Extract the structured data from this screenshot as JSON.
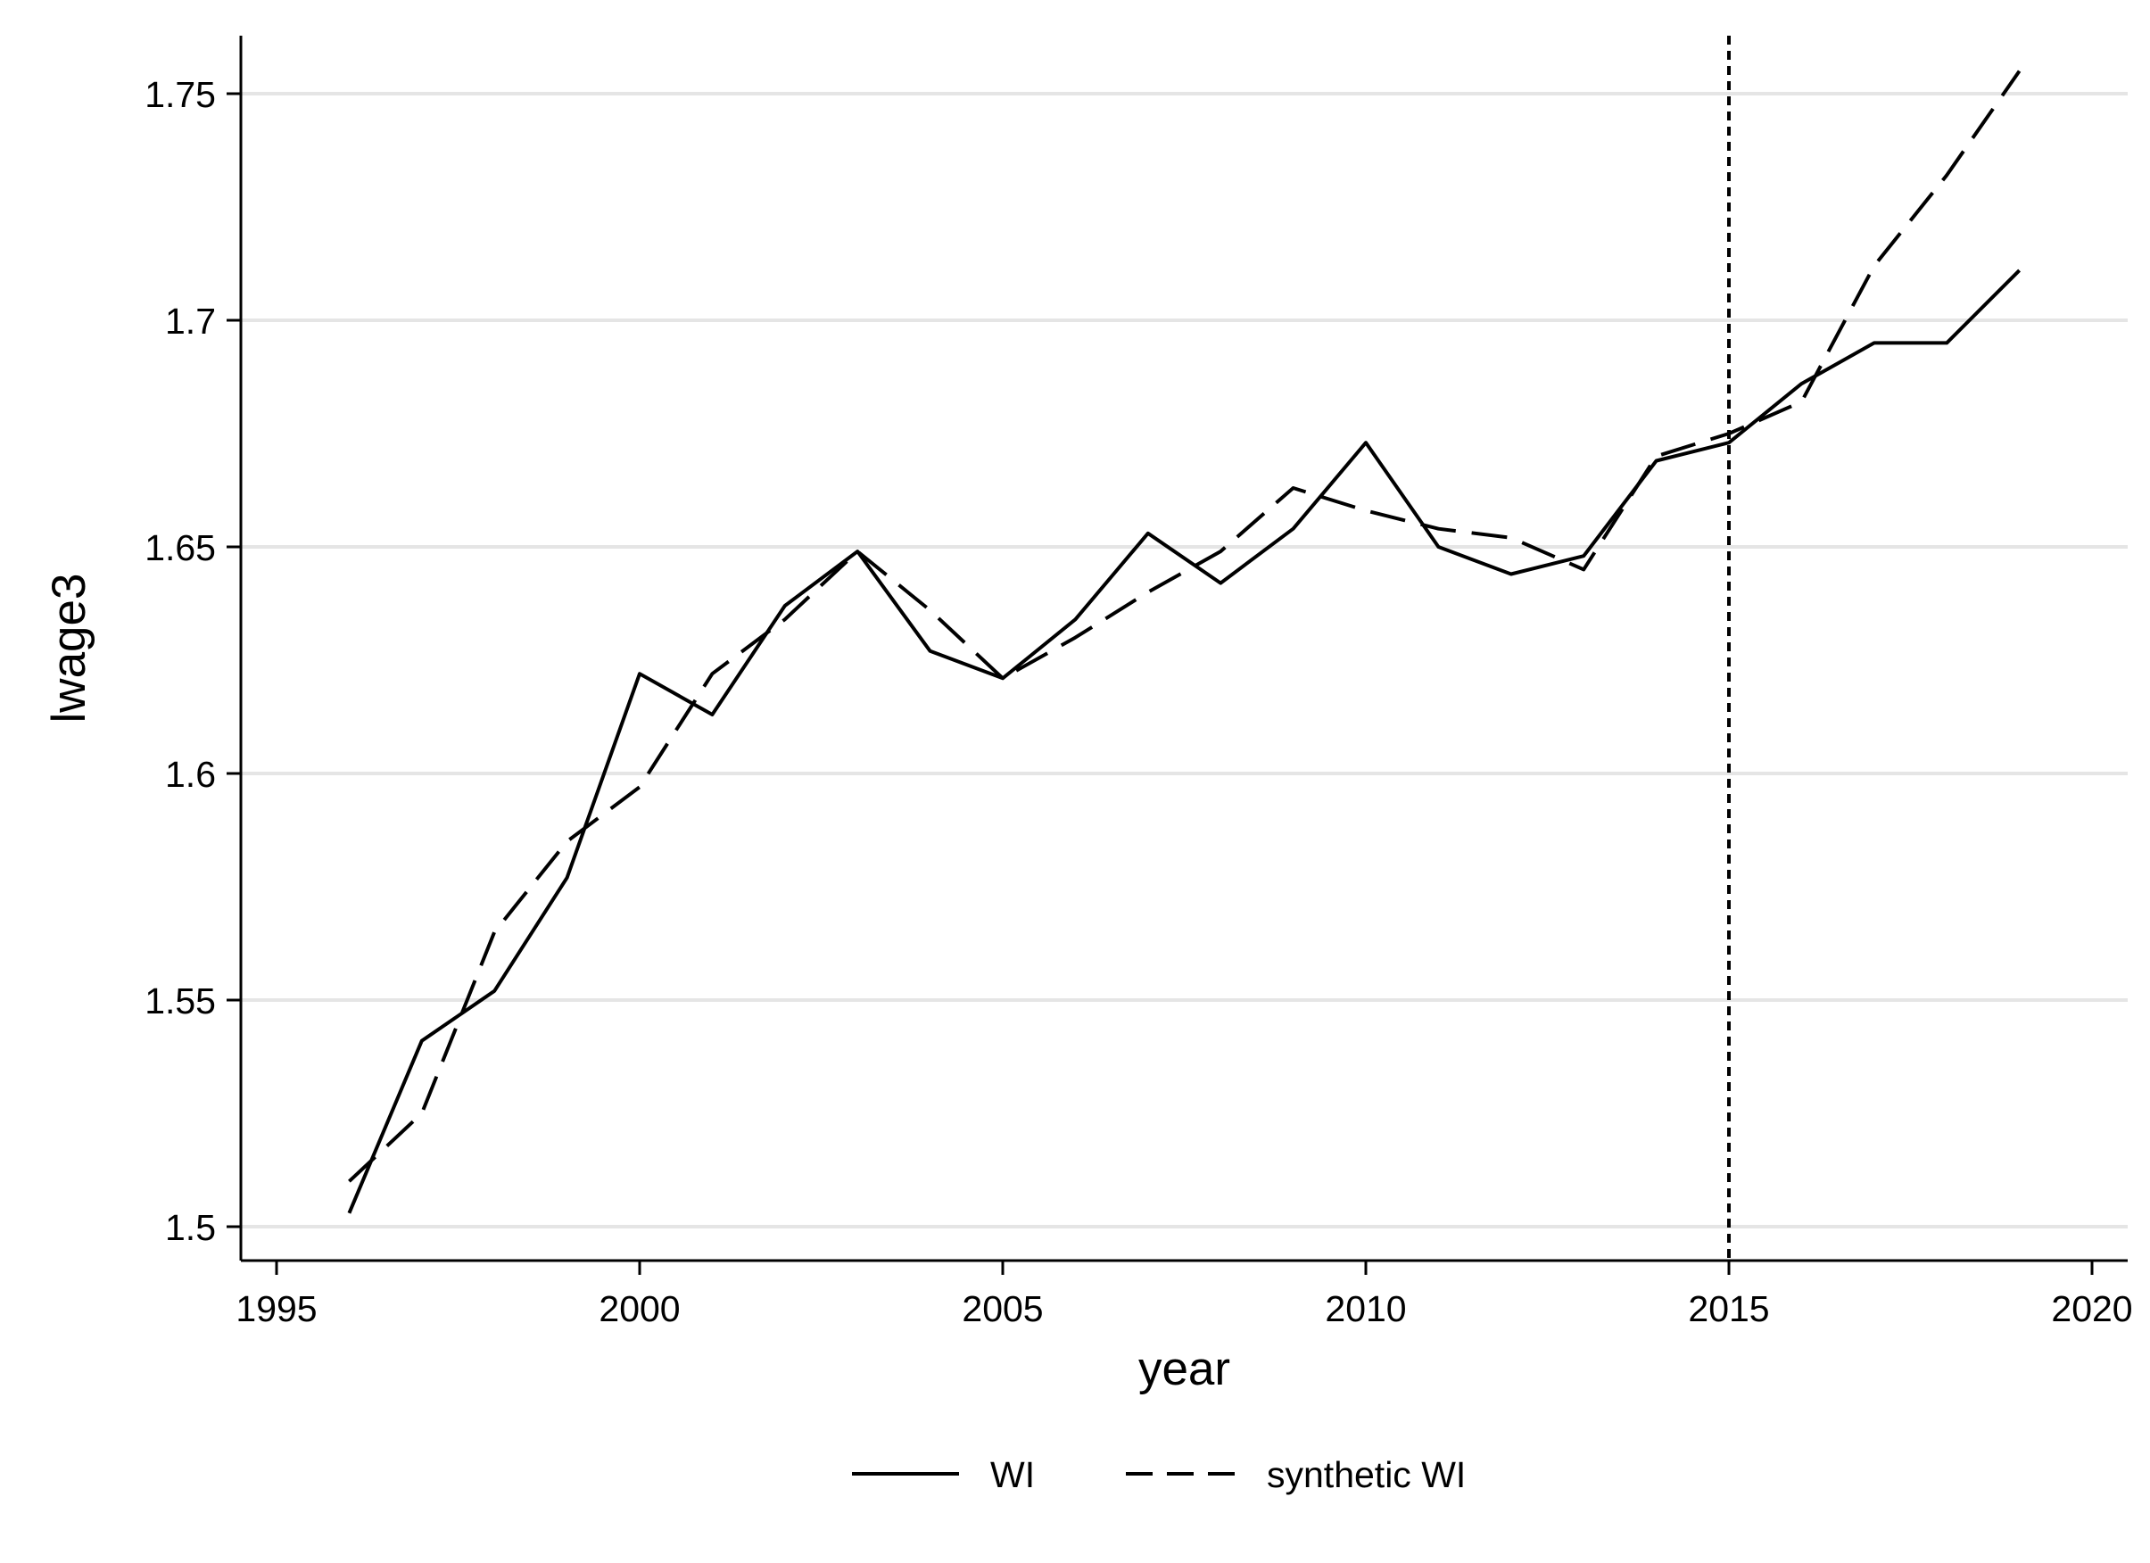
{
  "chart_data": {
    "type": "line",
    "title": "",
    "xlabel": "year",
    "ylabel": "lwage3",
    "xlim": [
      1995,
      2020
    ],
    "ylim": [
      1.5,
      1.75
    ],
    "x_ticks": [
      1995,
      2000,
      2005,
      2010,
      2015,
      2020
    ],
    "y_ticks": [
      1.5,
      1.55,
      1.6,
      1.65,
      1.7,
      1.75
    ],
    "x_tick_labels": [
      "1995",
      "2000",
      "2005",
      "2010",
      "2015",
      "2020"
    ],
    "y_tick_labels": [
      "1.5",
      "1.55",
      "1.6",
      "1.65",
      "1.7",
      "1.75"
    ],
    "grid": "horizontal",
    "legend_position": "bottom",
    "vertical_line": {
      "x": 2015,
      "style": "dotted"
    },
    "x": [
      1996,
      1997,
      1998,
      1999,
      2000,
      2001,
      2002,
      2003,
      2004,
      2005,
      2006,
      2007,
      2008,
      2009,
      2010,
      2011,
      2012,
      2013,
      2014,
      2015,
      2016,
      2017,
      2018,
      2019
    ],
    "series": [
      {
        "name": "WI",
        "style": "solid",
        "color": "#000000",
        "values": [
          1.503,
          1.541,
          1.552,
          1.577,
          1.622,
          1.613,
          1.637,
          1.649,
          1.627,
          1.621,
          1.634,
          1.653,
          1.642,
          1.654,
          1.673,
          1.65,
          1.644,
          1.648,
          1.669,
          1.673,
          1.686,
          1.695,
          1.695,
          1.711
        ]
      },
      {
        "name": "synthetic WI",
        "style": "dashed",
        "color": "#000000",
        "values": [
          1.51,
          1.525,
          1.565,
          1.585,
          1.597,
          1.622,
          1.634,
          1.649,
          1.636,
          1.621,
          1.63,
          1.64,
          1.649,
          1.663,
          1.658,
          1.654,
          1.652,
          1.645,
          1.67,
          1.675,
          1.682,
          1.712,
          1.732,
          1.755
        ]
      }
    ]
  },
  "colors": {
    "line": "#000000",
    "grid": "#e5e5e5",
    "background": "#ffffff"
  }
}
